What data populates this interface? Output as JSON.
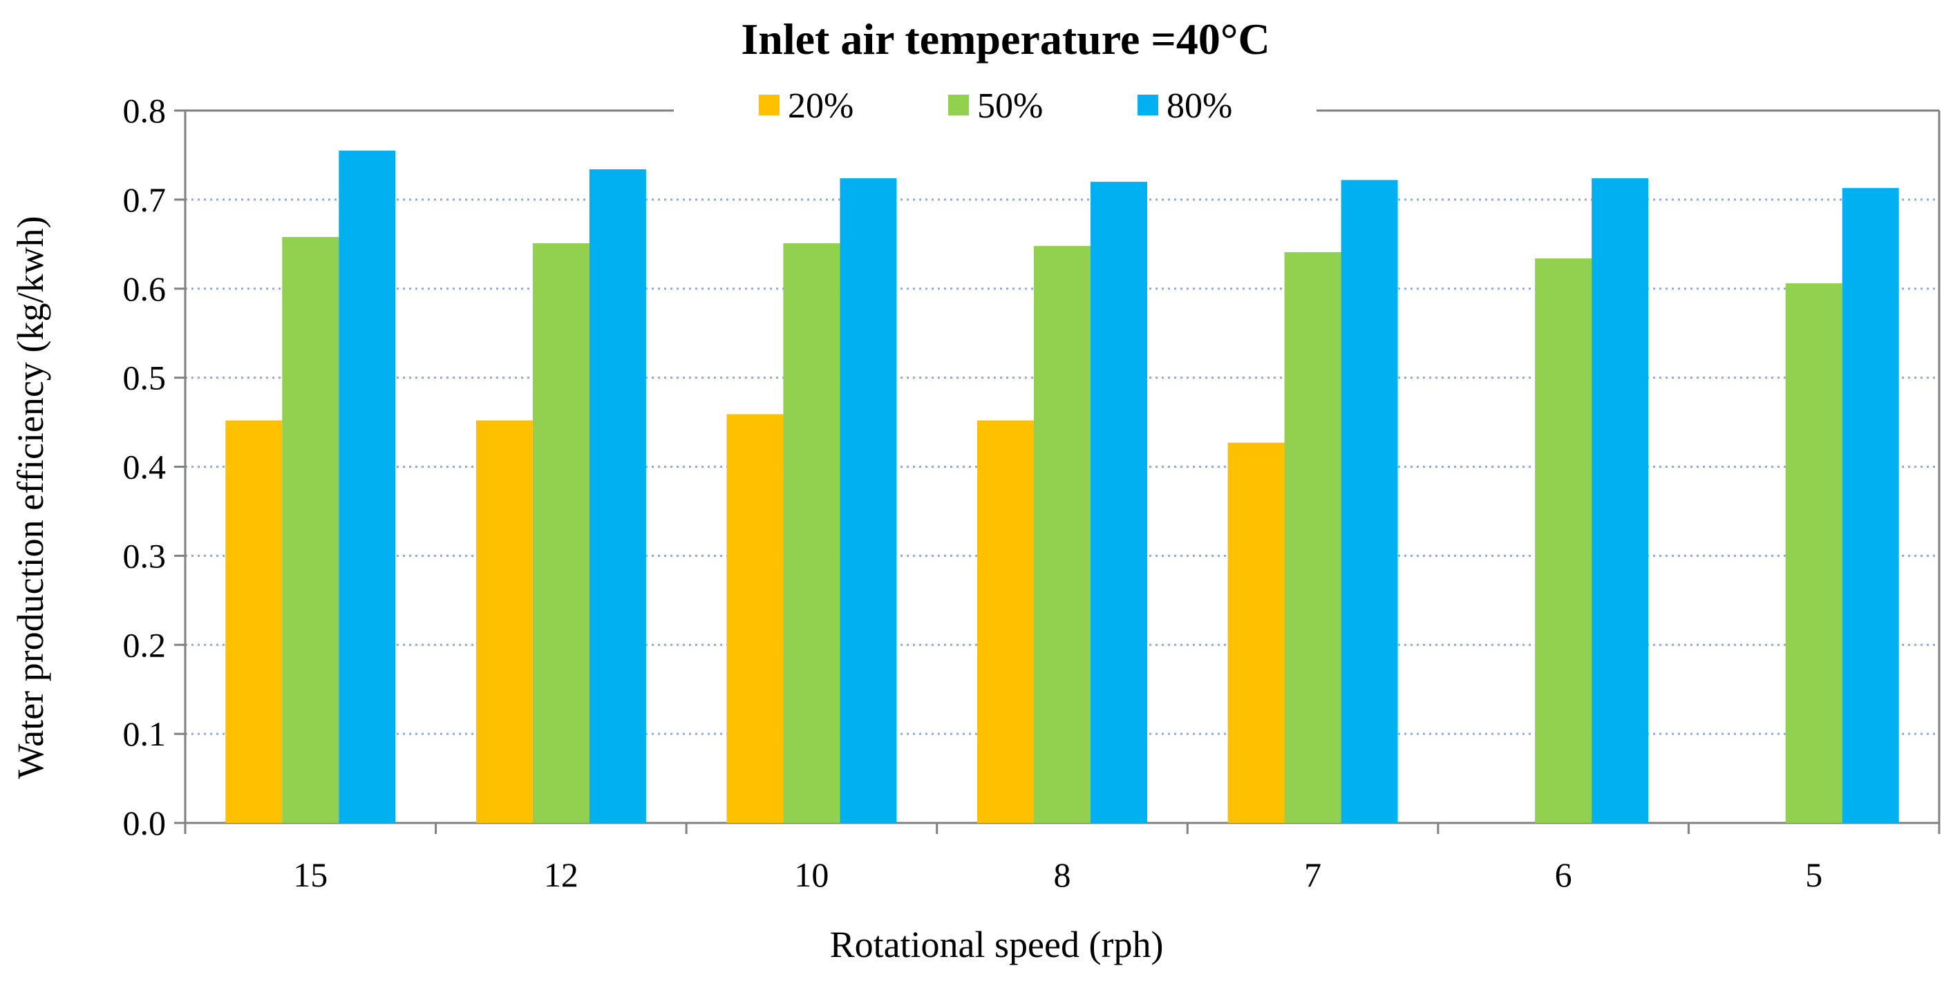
{
  "chart_data": {
    "type": "bar",
    "title": "Inlet air temperature =40°C",
    "xlabel": "Rotational speed (rph)",
    "ylabel": "Water production efficiency  (kg/kwh)",
    "categories": [
      "15",
      "12",
      "10",
      "8",
      "7",
      "6",
      "5"
    ],
    "ylim": [
      0,
      0.8
    ],
    "yticks": [
      "0.0",
      "0.1",
      "0.2",
      "0.3",
      "0.4",
      "0.5",
      "0.6",
      "0.7",
      "0.8"
    ],
    "grid": true,
    "legend_position": "top-center",
    "series": [
      {
        "name": "20%",
        "color": "#FFC000",
        "values": [
          0.452,
          0.452,
          0.459,
          0.452,
          0.427,
          null,
          null
        ]
      },
      {
        "name": "50%",
        "color": "#92D050",
        "values": [
          0.658,
          0.651,
          0.651,
          0.648,
          0.641,
          0.634,
          0.606
        ]
      },
      {
        "name": "80%",
        "color": "#00B0F0",
        "values": [
          0.755,
          0.734,
          0.724,
          0.72,
          0.722,
          0.724,
          0.713
        ]
      }
    ],
    "colors": {
      "axis": "#808080",
      "grid": "#8EA9DB",
      "frame": "#000000"
    }
  }
}
